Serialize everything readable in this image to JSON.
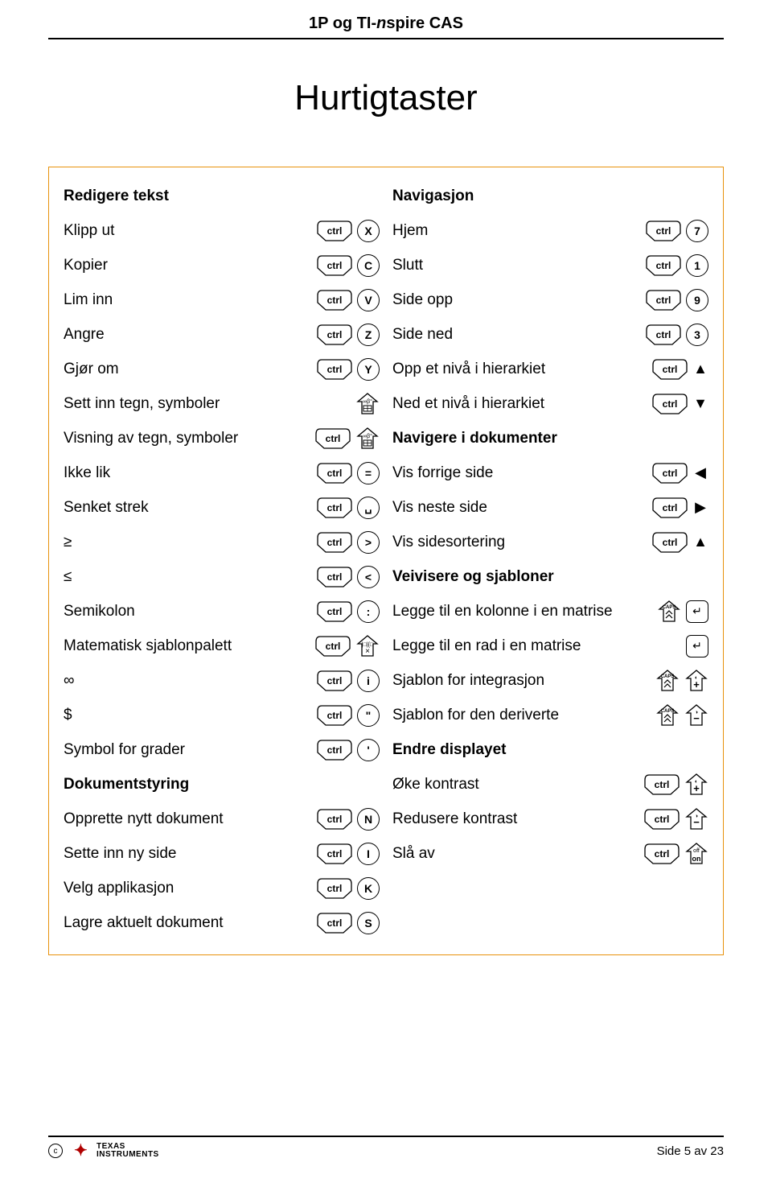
{
  "header": {
    "prefix": "1P og ",
    "brand_tin": "TI-",
    "brand_n": "n",
    "brand_rest": "spire CAS"
  },
  "title": "Hurtigtaster",
  "left": {
    "section1": "Redigere tekst",
    "rows1": [
      {
        "label": "Klipp ut",
        "keys": [
          "ctrl",
          "X"
        ]
      },
      {
        "label": "Kopier",
        "keys": [
          "ctrl",
          "C"
        ]
      },
      {
        "label": "Lim inn",
        "keys": [
          "ctrl",
          "V"
        ]
      },
      {
        "label": "Angre",
        "keys": [
          "ctrl",
          "Z"
        ]
      },
      {
        "label": "Gjør om",
        "keys": [
          "ctrl",
          "Y"
        ]
      },
      {
        "label": "Sett inn tegn, symboler",
        "keys": [
          "catalog"
        ]
      },
      {
        "label": "Visning av tegn, symboler",
        "keys": [
          "ctrl",
          "catalog"
        ]
      },
      {
        "label": "Ikke lik",
        "keys": [
          "ctrl",
          "="
        ]
      },
      {
        "label": "Senket strek",
        "keys": [
          "ctrl",
          "space"
        ]
      },
      {
        "label": "≥",
        "keys": [
          "ctrl",
          ">"
        ]
      },
      {
        "label": "≤",
        "keys": [
          "ctrl",
          "<"
        ]
      },
      {
        "label": "Semikolon",
        "keys": [
          "ctrl",
          ":"
        ]
      },
      {
        "label": "Matematisk sjablonpalett",
        "keys": [
          "ctrl",
          "template"
        ]
      },
      {
        "label": "∞",
        "keys": [
          "ctrl",
          "i"
        ]
      },
      {
        "label": "$",
        "keys": [
          "ctrl",
          "\""
        ]
      },
      {
        "label": "Symbol for grader",
        "keys": [
          "ctrl",
          "'"
        ]
      }
    ],
    "section2": "Dokumentstyring",
    "rows2": [
      {
        "label": "Opprette nytt dokument",
        "keys": [
          "ctrl",
          "N"
        ]
      },
      {
        "label": "Sette inn ny side",
        "keys": [
          "ctrl",
          "I"
        ]
      },
      {
        "label": "Velg applikasjon",
        "keys": [
          "ctrl",
          "K"
        ]
      },
      {
        "label": "Lagre aktuelt dokument",
        "keys": [
          "ctrl",
          "S"
        ]
      }
    ]
  },
  "right": {
    "section1": "Navigasjon",
    "rows1": [
      {
        "label": "Hjem",
        "keys": [
          "ctrl",
          "7"
        ]
      },
      {
        "label": "Slutt",
        "keys": [
          "ctrl",
          "1"
        ]
      },
      {
        "label": "Side opp",
        "keys": [
          "ctrl",
          "9"
        ]
      },
      {
        "label": "Side ned",
        "keys": [
          "ctrl",
          "3"
        ]
      },
      {
        "label": "Opp et nivå i hierarkiet",
        "keys": [
          "ctrl",
          "▲"
        ]
      },
      {
        "label": "Ned et nivå i hierarkiet",
        "keys": [
          "ctrl",
          "▼"
        ]
      }
    ],
    "section2": "Navigere i dokumenter",
    "rows2": [
      {
        "label": "Vis forrige side",
        "keys": [
          "ctrl",
          "◀"
        ]
      },
      {
        "label": "Vis neste side",
        "keys": [
          "ctrl",
          "▶"
        ]
      },
      {
        "label": "Vis sidesortering",
        "keys": [
          "ctrl",
          "▲"
        ]
      }
    ],
    "section3": "Veivisere og sjabloner",
    "rows3": [
      {
        "label": "Legge til en kolonne i en matrise",
        "keys": [
          "caps",
          "enter"
        ]
      },
      {
        "label": "Legge til en rad i en matrise",
        "keys": [
          "enter"
        ]
      },
      {
        "label": "Sjablon for integrasjon",
        "keys": [
          "caps",
          "plus"
        ]
      },
      {
        "label": "Sjablon for den deriverte",
        "keys": [
          "caps",
          "minus"
        ]
      }
    ],
    "section4": "Endre displayet",
    "rows4": [
      {
        "label": "Øke kontrast",
        "keys": [
          "ctrl",
          "plus"
        ]
      },
      {
        "label": "Redusere kontrast",
        "keys": [
          "ctrl",
          "minus"
        ]
      },
      {
        "label": "Slå av",
        "keys": [
          "ctrl",
          "on"
        ]
      }
    ]
  },
  "footer": {
    "brand_line1": "TEXAS",
    "brand_line2": "INSTRUMENTS",
    "page_text": "Side 5 av 23",
    "copyright": "c"
  },
  "colors": {
    "box_border": "#e8920c",
    "logo_red": "#b00000",
    "text": "#000000",
    "bg": "#ffffff"
  }
}
